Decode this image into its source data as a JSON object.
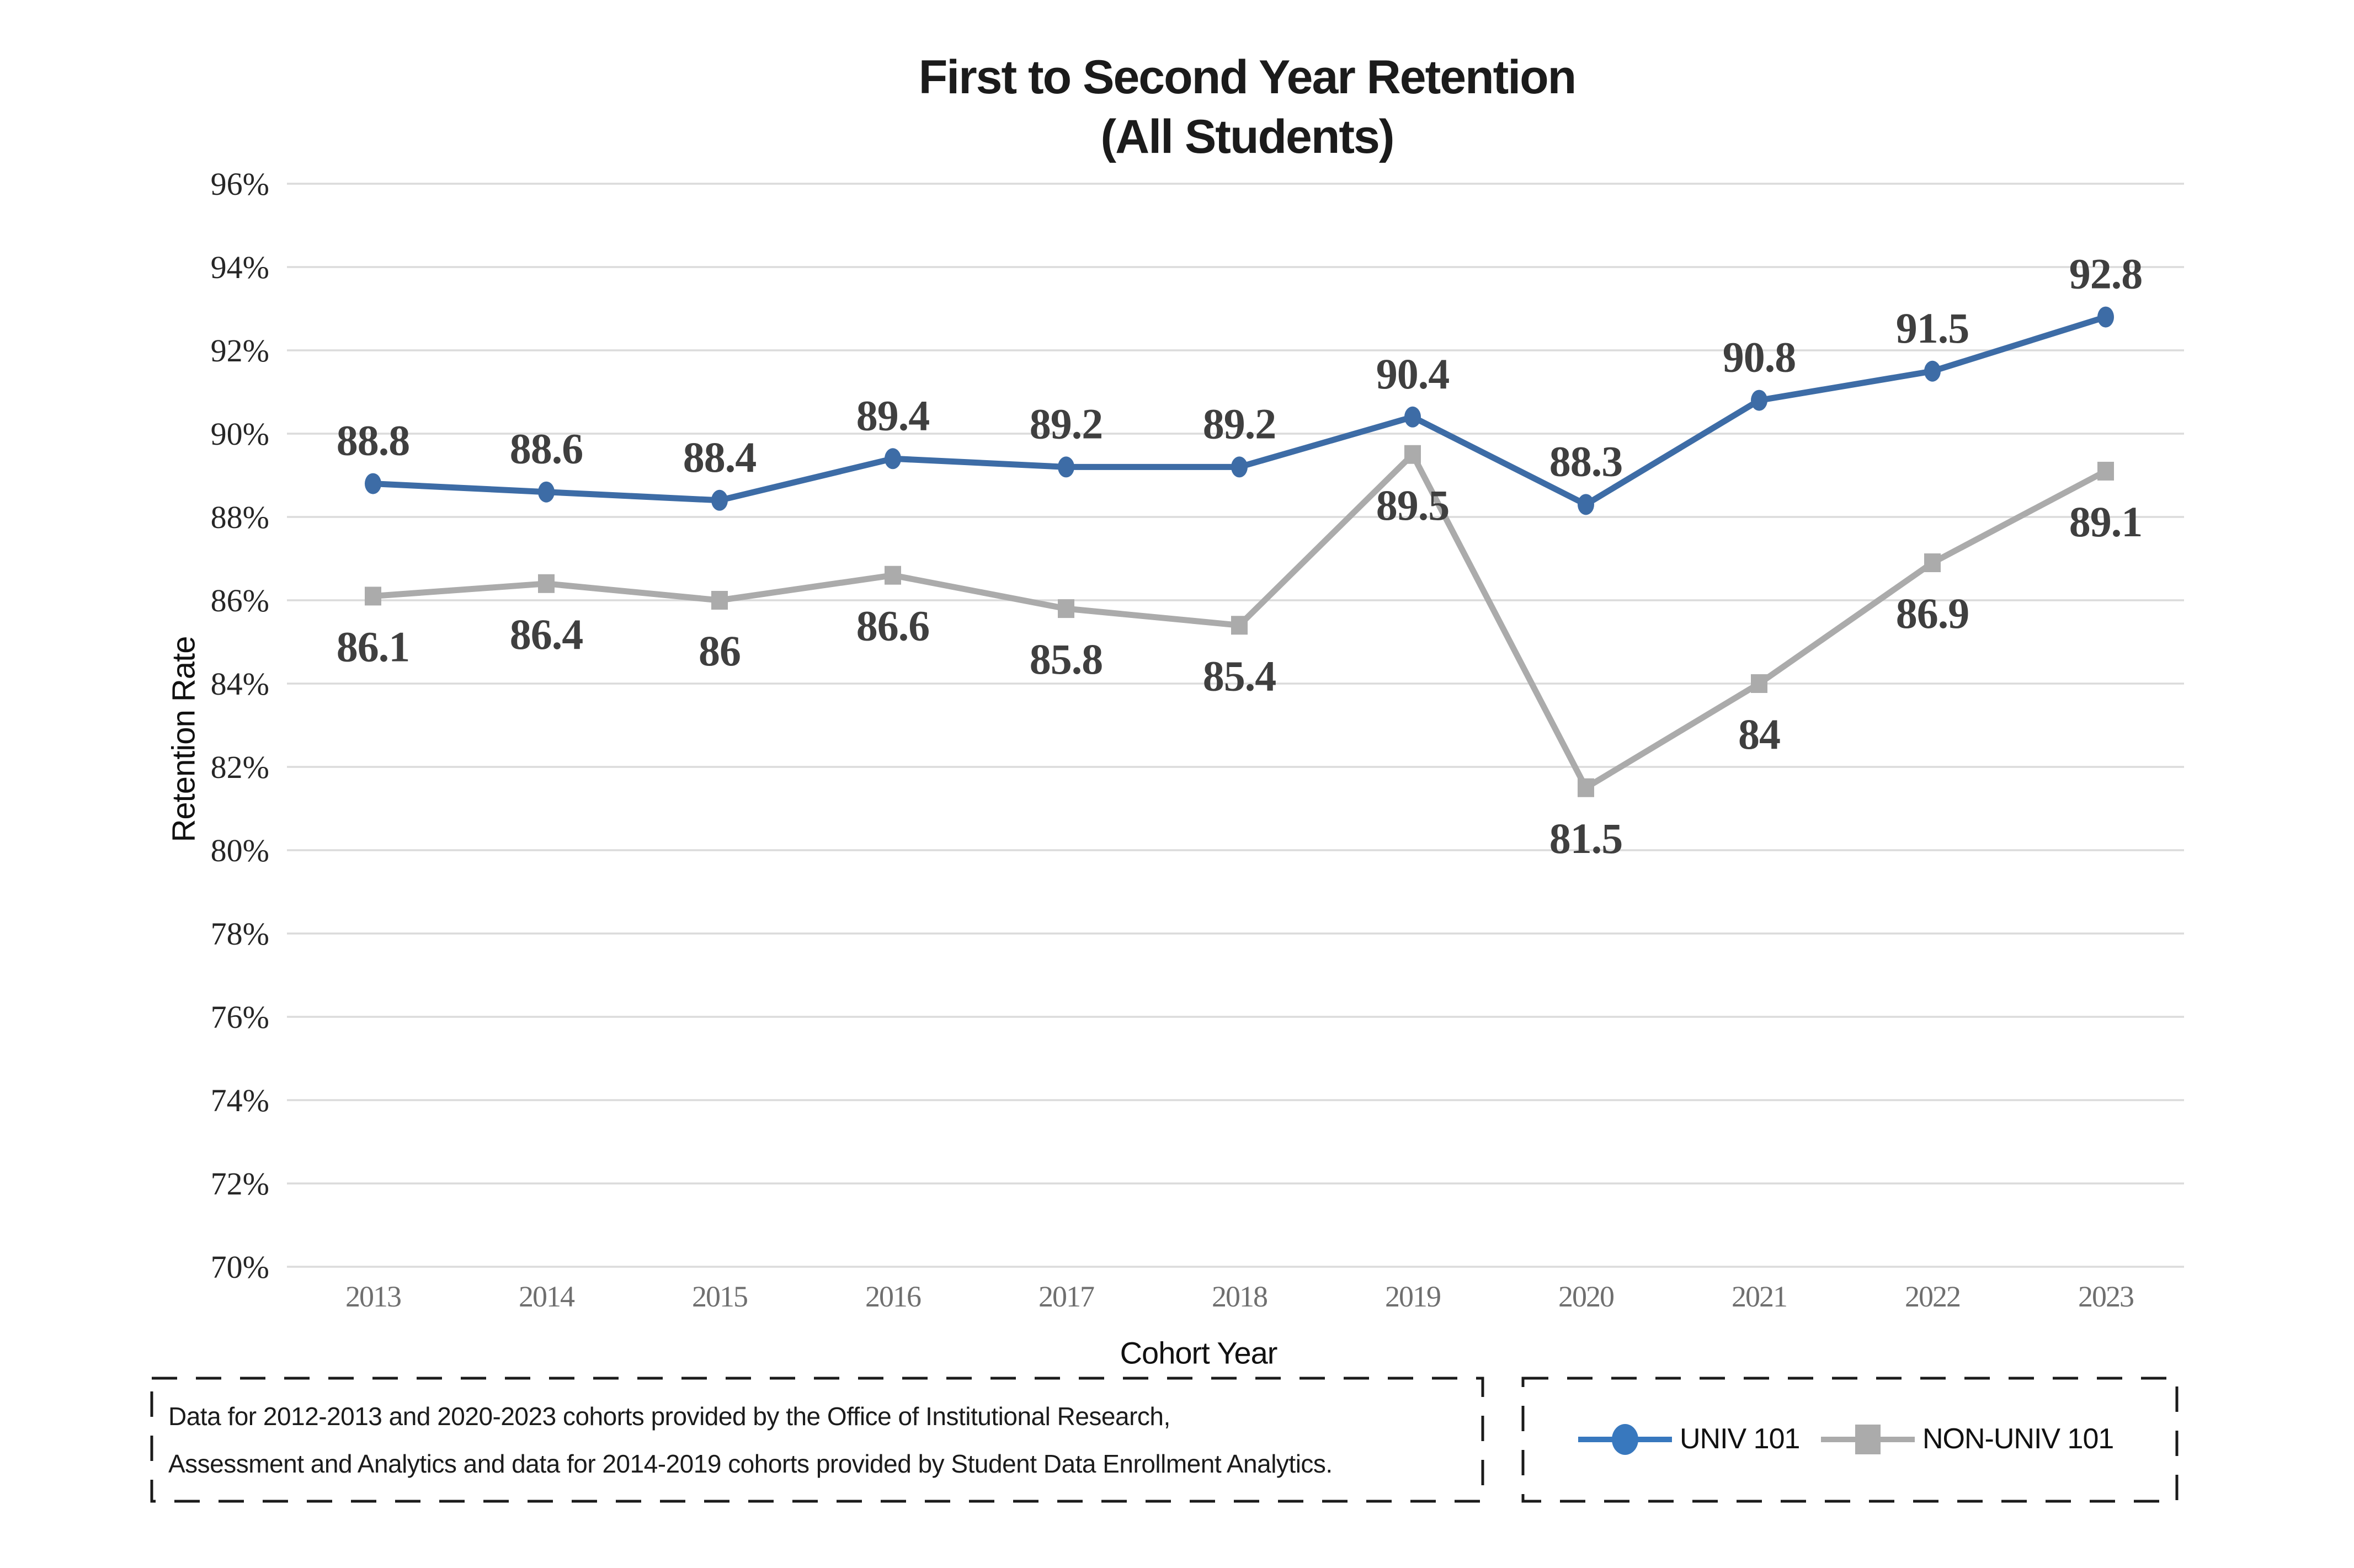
{
  "title": {
    "line1": "First to Second Year Retention",
    "line2": "(All Students)"
  },
  "footer": {
    "line1": "Data for 2012-2013 and 2020-2023 cohorts provided by the Office of Institutional Research,",
    "line2": "Assessment and Analytics and data for 2014-2019 cohorts provided by Student Data Enrollment Analytics."
  },
  "chart_data": {
    "type": "line",
    "title": "First to Second Year Retention (All Students)",
    "xlabel": "Cohort Year",
    "ylabel": "Retention Rate",
    "categories": [
      "2013",
      "2014",
      "2015",
      "2016",
      "2017",
      "2018",
      "2019",
      "2020",
      "2021",
      "2022",
      "2023"
    ],
    "series": [
      {
        "name": "UNIV 101",
        "color": "#3D6CA6",
        "legend_color": "#3878BE",
        "marker": "circle",
        "label_position": "above",
        "values": [
          88.8,
          88.6,
          88.4,
          89.4,
          89.2,
          89.2,
          90.4,
          88.3,
          90.8,
          91.5,
          92.8
        ]
      },
      {
        "name": "NON-UNIV 101",
        "color": "#ABABAB",
        "legend_color": "#ABABAB",
        "marker": "square",
        "label_position": "below",
        "values": [
          86.1,
          86.4,
          86,
          86.6,
          85.8,
          85.4,
          89.5,
          81.5,
          84,
          86.9,
          89.1
        ]
      }
    ],
    "ylim": [
      70,
      96
    ],
    "ytick_step": 2,
    "ytick_suffix": "%",
    "grid": "horizontal",
    "gridline_color": "#DBDBDB",
    "data_label_color": "#3F3F3F",
    "tick_label_color": "#262626",
    "xtick_label_color": "#6F6F6F",
    "legend_position": "bottom-right"
  }
}
